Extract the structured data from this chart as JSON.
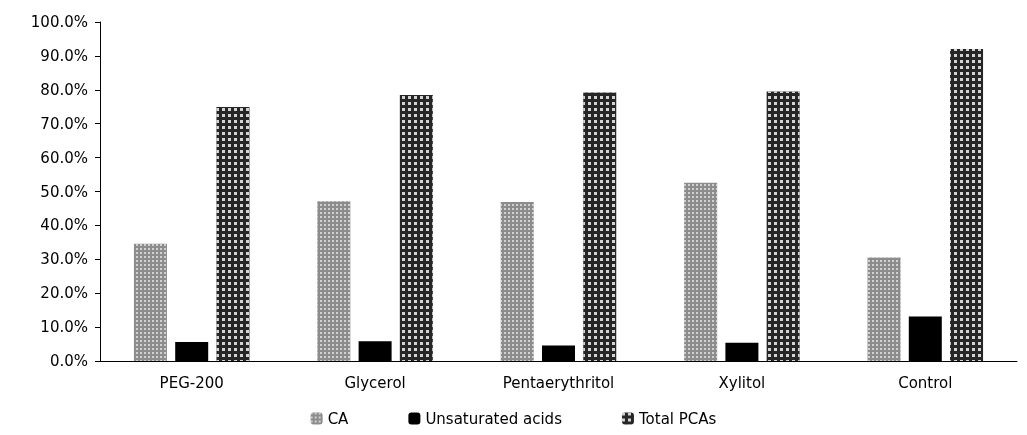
{
  "chart_data": {
    "type": "bar",
    "categories": [
      "PEG-200",
      "Glycerol",
      "Pentaerythritol",
      "Xylitol",
      "Control"
    ],
    "series": [
      {
        "name": "CA",
        "color": "#8c8c8c",
        "values": [
          34.6,
          47.1,
          46.9,
          52.6,
          30.5
        ]
      },
      {
        "name": "Unsaturated acids",
        "color": "#000000",
        "values": [
          5.6,
          5.8,
          4.6,
          5.4,
          13.1
        ]
      },
      {
        "name": "Total PCAs",
        "color": "#262626",
        "values": [
          74.9,
          78.5,
          79.2,
          79.5,
          92.0
        ]
      }
    ],
    "ylim": [
      0,
      100
    ],
    "yticks": [
      {
        "value": 0,
        "label": "0.0%"
      },
      {
        "value": 10,
        "label": "10.0%"
      },
      {
        "value": 20,
        "label": "20.0%"
      },
      {
        "value": 30,
        "label": "30.0%"
      },
      {
        "value": 40,
        "label": "40.0%"
      },
      {
        "value": 50,
        "label": "50.0%"
      },
      {
        "value": 60,
        "label": "60.0%"
      },
      {
        "value": 70,
        "label": "70.0%"
      },
      {
        "value": 80,
        "label": "80.0%"
      },
      {
        "value": 90,
        "label": "90.0%"
      },
      {
        "value": 100,
        "label": "100.0%"
      }
    ],
    "grid": false,
    "legend": "bottom"
  }
}
